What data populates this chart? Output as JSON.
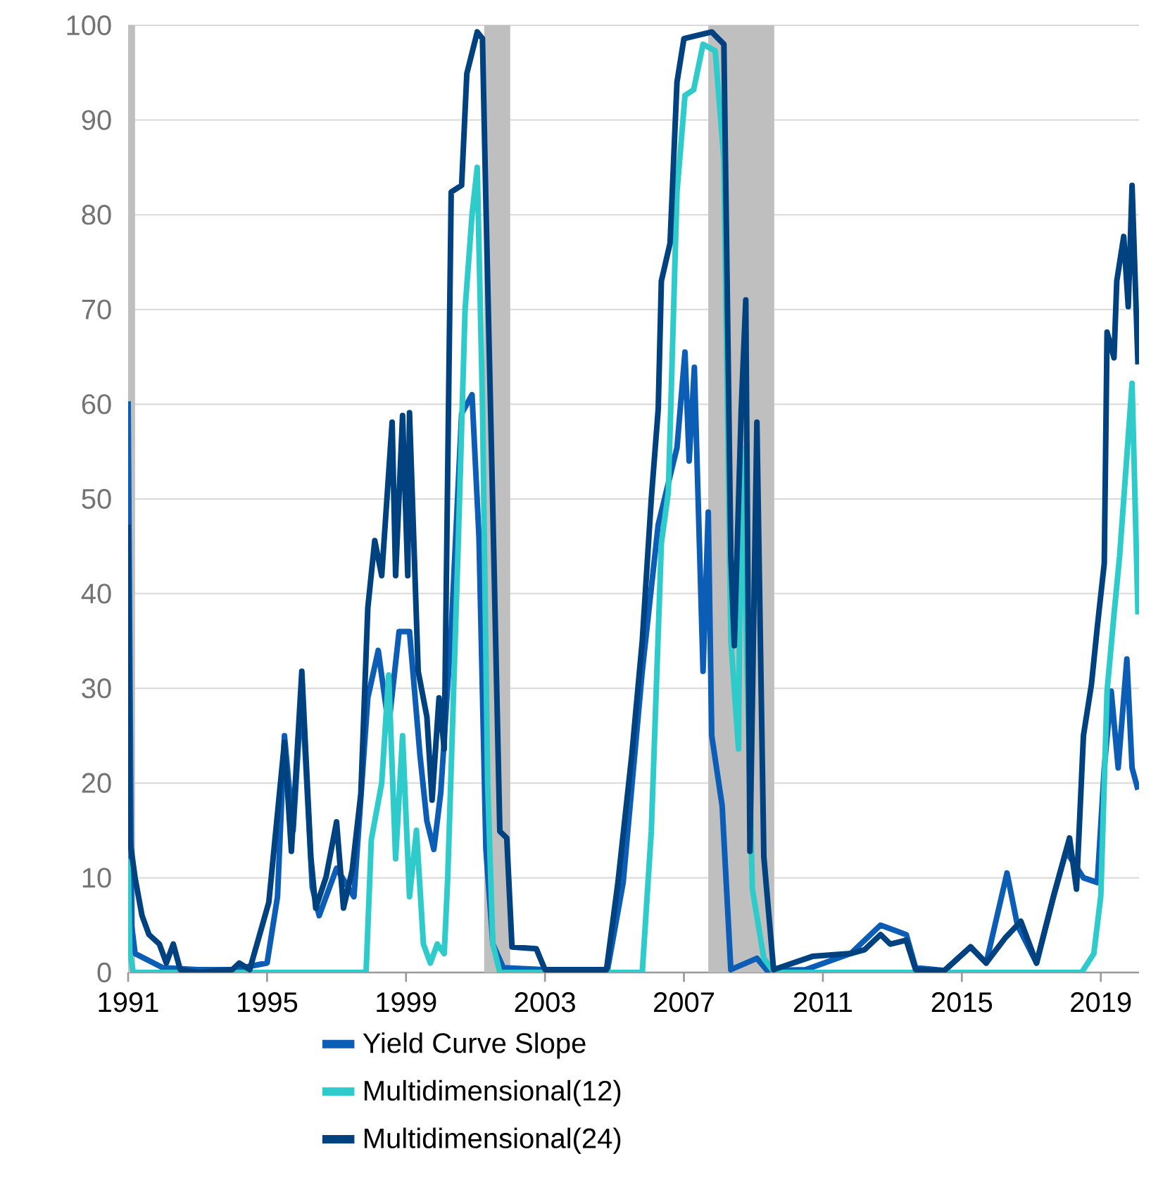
{
  "chart_data": {
    "type": "line",
    "xlim": [
      1991,
      2020.1
    ],
    "xticks": [
      1991,
      1995,
      1999,
      2003,
      2007,
      2011,
      2015,
      2019
    ],
    "ylim": [
      0,
      100
    ],
    "yticks": [
      0,
      10,
      20,
      30,
      40,
      50,
      60,
      70,
      80,
      90,
      100
    ],
    "grid": "y",
    "legend": "bottom",
    "line_style": "solid",
    "marker": "none",
    "bands": [
      {
        "axis": "x",
        "from": 1991.0,
        "to": 1991.2,
        "color": "#bfbfbf"
      },
      {
        "axis": "x",
        "from": 2001.25,
        "to": 2002.0,
        "color": "#bfbfbf"
      },
      {
        "axis": "x",
        "from": 2007.7,
        "to": 2009.6,
        "color": "#bfbfbf"
      }
    ],
    "series": [
      {
        "name": "Yield Curve Slope",
        "color": "#0b5db5",
        "x": [
          1991.0,
          1991.1,
          1991.2,
          1992.0,
          1993.0,
          1994.0,
          1995.0,
          1995.3,
          1995.5,
          1995.75,
          1996.0,
          1996.3,
          1996.5,
          1997.0,
          1997.5,
          1997.9,
          1998.2,
          1998.5,
          1998.8,
          1999.1,
          1999.4,
          1999.6,
          1999.8,
          2000.0,
          2000.3,
          2000.6,
          2000.9,
          2001.1,
          2001.3,
          2001.5,
          2001.8,
          2003.0,
          2004.0,
          2004.8,
          2005.25,
          2005.8,
          2006.26,
          2006.8,
          2007.03,
          2007.15,
          2007.3,
          2007.55,
          2007.7,
          2007.8,
          2008.1,
          2008.35,
          2009.1,
          2009.4,
          2010.5,
          2011.8,
          2012.66,
          2013.4,
          2013.67,
          2014.5,
          2015.25,
          2015.7,
          2016.3,
          2016.6,
          2017.15,
          2017.64,
          2018.0,
          2018.5,
          2018.9,
          2019.1,
          2019.3,
          2019.5,
          2019.75,
          2019.9,
          2020.07
        ],
        "values": [
          60.3,
          5,
          2,
          0.5,
          0.3,
          0.3,
          1,
          8,
          25,
          15,
          30,
          9,
          6,
          11,
          8,
          29,
          34,
          26,
          36,
          36,
          23,
          16,
          13,
          19,
          36,
          59,
          61,
          46,
          13,
          3,
          0.5,
          0.3,
          0.3,
          0.3,
          9.5,
          31.8,
          47.3,
          55.4,
          65.5,
          54,
          63.9,
          31.8,
          48.6,
          25,
          17.6,
          0.3,
          1.5,
          0.2,
          0.3,
          2,
          5,
          4,
          0.5,
          0.2,
          2.7,
          1,
          10.5,
          5,
          1,
          8,
          12.8,
          10,
          9.5,
          21.6,
          29.7,
          21.6,
          33.1,
          21.6,
          19.3
        ]
      },
      {
        "name": "Multidimensional(12)",
        "color": "#2fcbcb",
        "x": [
          1991.0,
          1991.05,
          1991.15,
          1997.85,
          1998.0,
          1998.3,
          1998.5,
          1998.7,
          1998.9,
          1999.1,
          1999.3,
          1999.5,
          1999.7,
          1999.9,
          2000.1,
          2000.2,
          2000.5,
          2000.7,
          2000.9,
          2001.05,
          2001.2,
          2001.35,
          2001.5,
          2001.7,
          2005.8,
          2006.06,
          2006.35,
          2006.55,
          2006.8,
          2007.03,
          2007.28,
          2007.55,
          2007.9,
          2008.15,
          2008.35,
          2008.57,
          2008.65,
          2008.8,
          2008.97,
          2009.3,
          2009.6,
          2018.45,
          2018.8,
          2019.0,
          2019.18,
          2019.38,
          2019.54,
          2019.74,
          2019.9,
          2020.07
        ],
        "values": [
          12,
          2,
          0,
          0,
          14,
          20,
          31.4,
          12,
          25,
          8,
          15,
          3,
          1,
          3,
          2,
          10,
          45,
          70,
          80,
          85,
          60,
          20,
          3,
          0,
          0,
          14.9,
          45.3,
          50.7,
          82.4,
          92.6,
          93.2,
          98,
          97.3,
          85.8,
          35.1,
          23.6,
          55.4,
          35.1,
          8.8,
          1.5,
          0,
          0,
          2,
          8.1,
          29.7,
          37.8,
          43.9,
          54,
          62.2,
          37.8
        ]
      },
      {
        "name": "Multidimensional(24)",
        "color": "#00427f",
        "x": [
          1991.0,
          1991.05,
          1991.2,
          1991.4,
          1991.6,
          1991.9,
          1992.1,
          1992.3,
          1992.5,
          1993.0,
          1994.0,
          1994.2,
          1994.5,
          1995.05,
          1995.5,
          1995.7,
          1996.0,
          1996.26,
          1996.4,
          1996.7,
          1997.0,
          1997.2,
          1997.45,
          1997.7,
          1997.9,
          1998.1,
          1998.3,
          1998.6,
          1998.7,
          1998.9,
          1999.05,
          1999.1,
          1999.35,
          1999.6,
          1999.75,
          1999.95,
          2000.1,
          2000.3,
          2000.6,
          2000.75,
          2001.05,
          2001.2,
          2001.3,
          2001.5,
          2001.7,
          2001.9,
          2002.05,
          2002.75,
          2003.0,
          2004.0,
          2004.77,
          2005.1,
          2005.5,
          2005.8,
          2006.06,
          2006.26,
          2006.35,
          2006.6,
          2006.8,
          2007.0,
          2007.8,
          2008.15,
          2008.35,
          2008.45,
          2008.65,
          2008.78,
          2008.9,
          2009.1,
          2009.3,
          2009.58,
          2010.7,
          2011.8,
          2012.2,
          2012.66,
          2012.94,
          2013.4,
          2013.67,
          2014.5,
          2015.25,
          2015.7,
          2016.26,
          2016.7,
          2017.15,
          2017.64,
          2018.1,
          2018.3,
          2018.5,
          2018.73,
          2018.9,
          2019.1,
          2019.18,
          2019.38,
          2019.46,
          2019.66,
          2019.79,
          2019.9,
          2020.07
        ],
        "values": [
          47.3,
          14,
          10,
          6,
          4,
          3,
          1,
          3,
          0.3,
          0,
          0.3,
          1,
          0.3,
          7.4,
          24.3,
          12.8,
          31.8,
          12.2,
          6.8,
          10.1,
          15.9,
          6.8,
          10.8,
          18.9,
          38.5,
          45.6,
          41.9,
          58.1,
          41.9,
          58.8,
          41.9,
          59.1,
          31.8,
          27,
          18.2,
          29,
          23.6,
          82.4,
          83.1,
          94.9,
          99.3,
          98.6,
          81.1,
          48.6,
          14.9,
          14.2,
          2.7,
          2.5,
          0.3,
          0.3,
          0.3,
          9.5,
          23,
          35,
          50,
          59.5,
          73,
          77,
          94,
          98.6,
          99.3,
          98,
          43.9,
          34.5,
          59.5,
          71,
          12.8,
          58.1,
          12.2,
          0.3,
          1.7,
          2,
          2.4,
          4,
          3,
          3.4,
          0.3,
          0.2,
          2.7,
          1,
          3.7,
          5.4,
          1,
          8.1,
          14.2,
          8.8,
          25,
          30.4,
          36.5,
          43.2,
          67.6,
          64.9,
          73,
          77.7,
          70.3,
          83.1,
          64.2
        ]
      }
    ]
  }
}
